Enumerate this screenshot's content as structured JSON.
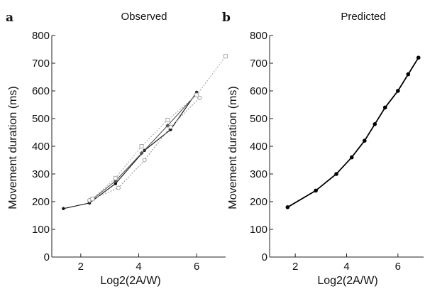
{
  "chart_data": [
    {
      "type": "line",
      "panel_letter": "a",
      "title": "Observed",
      "xlabel": "Log2(2A/W)",
      "ylabel": "Movement duration (ms)",
      "xlim": [
        1,
        7
      ],
      "ylim": [
        0,
        800
      ],
      "xticks": [
        2,
        4,
        6
      ],
      "yticks": [
        0,
        100,
        200,
        300,
        400,
        500,
        600,
        700,
        800
      ],
      "grid": false,
      "series": [
        {
          "color": "#111111",
          "marker": "circle-filled",
          "dash": "solid",
          "x": [
            1.4,
            2.3,
            3.2,
            4.2,
            5.1,
            6.0
          ],
          "y": [
            175,
            195,
            265,
            385,
            460,
            595
          ]
        },
        {
          "color": "#555555",
          "marker": "diamond-filled",
          "dash": "solid",
          "x": [
            2.3,
            3.2,
            4.1,
            5.0,
            6.0
          ],
          "y": [
            200,
            275,
            375,
            475,
            590
          ]
        },
        {
          "color": "#999999",
          "marker": "circle-open",
          "dash": "dotted",
          "x": [
            2.3,
            3.3,
            4.2,
            5.1,
            6.1
          ],
          "y": [
            205,
            250,
            350,
            470,
            575
          ]
        },
        {
          "color": "#aaaaaa",
          "marker": "square-open",
          "dash": "dotted",
          "x": [
            2.4,
            3.2,
            4.1,
            5.0,
            6.0,
            7.0
          ],
          "y": [
            210,
            285,
            400,
            495,
            585,
            725
          ]
        }
      ]
    },
    {
      "type": "line",
      "panel_letter": "b",
      "title": "Predicted",
      "xlabel": "Log2(2A/W)",
      "ylabel": "Movement duration (ms)",
      "xlim": [
        1,
        7
      ],
      "ylim": [
        0,
        800
      ],
      "xticks": [
        2,
        4,
        6
      ],
      "yticks": [
        0,
        100,
        200,
        300,
        400,
        500,
        600,
        700,
        800
      ],
      "grid": false,
      "series": [
        {
          "color": "#000000",
          "marker": "circle-filled",
          "dash": "solid",
          "x": [
            1.7,
            2.8,
            3.6,
            4.2,
            4.7,
            5.1,
            5.5,
            6.0,
            6.4,
            6.8
          ],
          "y": [
            180,
            240,
            300,
            360,
            420,
            480,
            540,
            600,
            660,
            720
          ]
        }
      ]
    }
  ]
}
